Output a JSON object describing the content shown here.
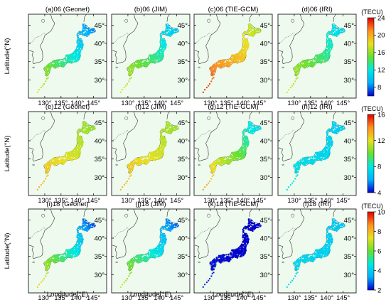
{
  "figure": {
    "panels": [
      {
        "title": "(a)06 (Geonet)",
        "palette": 0,
        "level": 0.55,
        "grad": 0.38
      },
      {
        "title": "(b)06 (JIM)",
        "palette": 0,
        "level": 0.58,
        "grad": 0.32
      },
      {
        "title": "(c)06 (TIE-GCM)",
        "palette": 0,
        "level": 0.87,
        "grad": 0.25
      },
      {
        "title": "(d)06 (IRI)",
        "palette": 0,
        "level": 0.58,
        "grad": 0.28
      },
      {
        "title": "(e)12 (Geonet)",
        "palette": 1,
        "level": 0.72,
        "grad": 0.15
      },
      {
        "title": "(f)12 (JIM)",
        "palette": 1,
        "level": 0.72,
        "grad": 0.14
      },
      {
        "title": "(g)12 (TIE-GCM)",
        "palette": 1,
        "level": 0.7,
        "grad": 0.38
      },
      {
        "title": "(h)12 (IRI)",
        "palette": 1,
        "level": 0.3,
        "grad": 0.05
      },
      {
        "title": "(i)18 (Geonet)",
        "palette": 2,
        "level": 0.58,
        "grad": 0.45
      },
      {
        "title": "(j)18 (JIM)",
        "palette": 2,
        "level": 0.52,
        "grad": 0.38
      },
      {
        "title": "(k)18 (TIE-GCM)",
        "palette": 2,
        "level": 0.02,
        "grad": 0.04
      },
      {
        "title": "(l)18 (IRI)",
        "palette": 2,
        "level": 0.28,
        "grad": 0.04
      }
    ],
    "colorbars": [
      {
        "unit": "(TECU)",
        "ticks": [
          {
            "v": 8,
            "label": "8"
          },
          {
            "v": 12,
            "label": "12"
          },
          {
            "v": 16,
            "label": "16"
          },
          {
            "v": 20,
            "label": "20"
          },
          {
            "v": 24,
            "label": "24"
          }
        ],
        "min": 6,
        "max": 24
      },
      {
        "unit": "(TECU)",
        "ticks": [
          {
            "v": 4,
            "label": "4"
          },
          {
            "v": 8,
            "label": "8"
          },
          {
            "v": 12,
            "label": "12"
          },
          {
            "v": 16,
            "label": "16"
          }
        ],
        "min": 4,
        "max": 16
      },
      {
        "unit": "(TECU)",
        "ticks": [
          {
            "v": 2,
            "label": "2"
          },
          {
            "v": 4,
            "label": "4"
          },
          {
            "v": 6,
            "label": "6"
          },
          {
            "v": 8,
            "label": "8"
          },
          {
            "v": 10,
            "label": "10"
          }
        ],
        "min": 2,
        "max": 10
      }
    ],
    "y_axis": {
      "label": "Latitude(°N)",
      "ticks": [
        "45°",
        "40°",
        "35°",
        "30°"
      ],
      "values": [
        45,
        40,
        35,
        30
      ],
      "range": [
        25,
        48
      ]
    },
    "x_axis": {
      "label": "Longitude(°E)",
      "ticks": [
        "130°",
        "135°",
        "140°",
        "145°"
      ],
      "values": [
        130,
        135,
        140,
        145
      ],
      "range": [
        125,
        149
      ]
    },
    "colors": {
      "ocean": "#edfaed",
      "coast": "#333333",
      "frame": "#000000",
      "colormap": [
        "#0000cc",
        "#00b0ff",
        "#00e8e0",
        "#66e030",
        "#e8e020",
        "#ff9020",
        "#e00000"
      ]
    }
  }
}
